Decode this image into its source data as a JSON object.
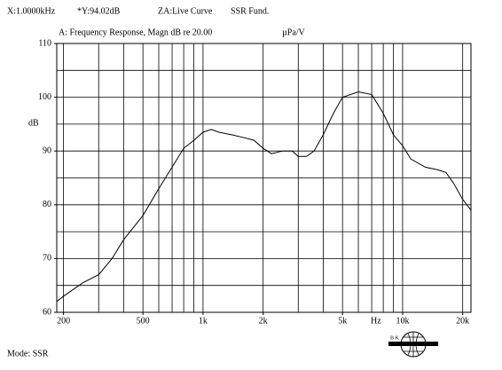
{
  "chart_data": {
    "type": "line",
    "header": [
      "X:1.0000kHz",
      "*Y:94.02dB",
      "ZA:Live Curve",
      "SSR Fund."
    ],
    "title": "A: Frequency Response, Magn dB re 20.00",
    "unit": "µPa/V",
    "y_label": "dB",
    "x_label": "Hz",
    "footer": "Mode: SSR",
    "logo": "B K",
    "x_log": true,
    "color": "#000000",
    "x": [
      185,
      200,
      250,
      300,
      350,
      400,
      500,
      600,
      700,
      800,
      900,
      1000,
      1100,
      1200,
      1400,
      1600,
      1800,
      2000,
      2200,
      2500,
      2800,
      3000,
      3300,
      3600,
      4000,
      4500,
      5000,
      6000,
      7000,
      8000,
      9000,
      10000,
      11000,
      13000,
      15000,
      16500,
      18000,
      20000,
      22000
    ],
    "values": [
      62,
      63,
      65.5,
      67,
      70,
      73.5,
      78,
      83,
      87,
      90.5,
      92,
      93.5,
      94,
      93.5,
      93,
      92.5,
      92,
      90.5,
      89.5,
      90,
      90,
      89,
      89,
      90,
      93,
      97,
      100,
      101,
      100.5,
      97,
      93,
      91,
      88.5,
      87,
      86.5,
      86,
      84,
      81,
      79
    ],
    "xlim": [
      185,
      22000
    ],
    "ylim": [
      60,
      110
    ],
    "xticks": [
      200,
      500,
      {
        "value": 1000,
        "label": "1k"
      },
      {
        "value": 2000,
        "label": "2k"
      },
      {
        "value": 5000,
        "label": "5k"
      },
      {
        "value": 10000,
        "label": "10k"
      },
      {
        "value": 20000,
        "label": "20k"
      }
    ],
    "yticks": [
      60,
      70,
      80,
      90,
      100,
      110
    ],
    "x_grid": [
      200,
      300,
      400,
      500,
      600,
      700,
      800,
      900,
      1000,
      2000,
      3000,
      4000,
      5000,
      6000,
      7000,
      8000,
      9000,
      10000,
      20000
    ],
    "y_grid": [
      65,
      70,
      75,
      80,
      85,
      90,
      95,
      100,
      105
    ]
  }
}
